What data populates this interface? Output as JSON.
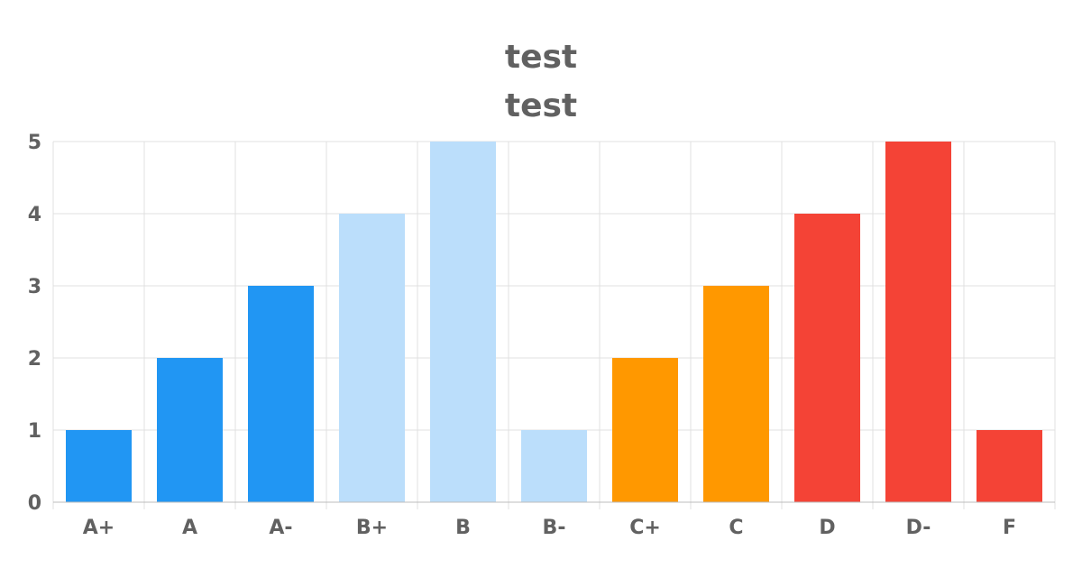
{
  "chart_data": {
    "type": "bar",
    "title": "test",
    "subtitle": "test",
    "categories": [
      "A+",
      "A",
      "A-",
      "B+",
      "B",
      "B-",
      "C+",
      "C",
      "D",
      "D-",
      "F"
    ],
    "values": [
      1,
      2,
      3,
      4,
      5,
      1,
      2,
      3,
      4,
      5,
      1
    ],
    "colors": [
      "#2196f3",
      "#2196f3",
      "#2196f3",
      "#bbdefb",
      "#bbdefb",
      "#bbdefb",
      "#ff9800",
      "#ff9800",
      "#f44336",
      "#f44336",
      "#f44336"
    ],
    "ylim": [
      0,
      5
    ],
    "yticks": [
      "0",
      "1",
      "2",
      "3",
      "4",
      "5"
    ],
    "grid": true,
    "legend": "none",
    "xlabel": "",
    "ylabel": ""
  }
}
